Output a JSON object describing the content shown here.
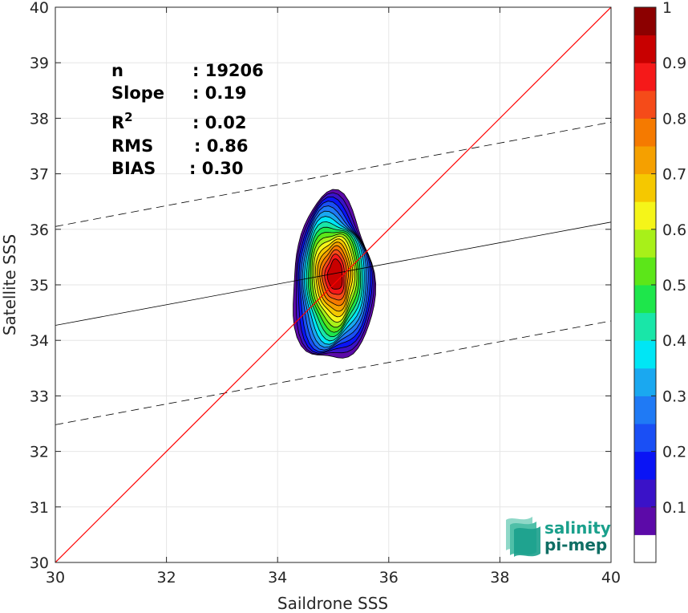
{
  "chart_data": {
    "type": "heatmap",
    "xlabel": "Saildrone SSS",
    "ylabel": "Satellite SSS",
    "xlim": [
      30,
      40
    ],
    "ylim": [
      30,
      40
    ],
    "x_ticks": [
      "30",
      "32",
      "34",
      "36",
      "38",
      "40"
    ],
    "y_ticks": [
      "30",
      "31",
      "32",
      "33",
      "34",
      "35",
      "36",
      "37",
      "38",
      "39",
      "40"
    ],
    "grid": true,
    "stats": [
      {
        "label": "n",
        "value": ": 19206"
      },
      {
        "label": "Slope",
        "value": ": 0.19"
      },
      {
        "label": "R",
        "sup": "2",
        "value": ": 0.02"
      },
      {
        "label": "RMS",
        "value": ": 0.86"
      },
      {
        "label": "BIAS",
        "value": ": 0.30"
      }
    ],
    "identity_line": {
      "x": [
        30,
        40
      ],
      "y": [
        30,
        40
      ],
      "color": "#ff0000"
    },
    "regression_line": {
      "x": [
        30,
        40
      ],
      "y": [
        34.27,
        36.13
      ],
      "color": "#000000"
    },
    "confidence_bounds": [
      {
        "x": [
          30,
          40
        ],
        "y": [
          36.05,
          37.93
        ]
      },
      {
        "x": [
          30,
          40
        ],
        "y": [
          32.48,
          34.35
        ]
      }
    ],
    "density_peak": {
      "x": 35.05,
      "y": 35.2
    },
    "contour_levels": [
      0.05,
      0.1,
      0.15,
      0.2,
      0.25,
      0.3,
      0.35,
      0.4,
      0.45,
      0.5,
      0.55,
      0.6,
      0.65,
      0.7,
      0.75,
      0.8,
      0.85,
      0.9,
      0.95,
      1
    ],
    "colorbar": {
      "range": [
        0,
        1
      ],
      "ticks": [
        "0.1",
        "0.2",
        "0.3",
        "0.4",
        "0.5",
        "0.6",
        "0.7",
        "0.8",
        "0.9",
        "1"
      ],
      "colors": [
        "#ffffff",
        "#5c0aa8",
        "#3a12c8",
        "#0a14f5",
        "#1a4ff5",
        "#1f7af5",
        "#1aa8f0",
        "#00e6f5",
        "#19e6a8",
        "#1ee64b",
        "#5ce619",
        "#a8f019",
        "#f5f519",
        "#f5c800",
        "#f5a000",
        "#f57a00",
        "#f54b19",
        "#f51919",
        "#c80000",
        "#8c0000"
      ]
    }
  },
  "logo": {
    "line1": "salinity",
    "line2": "pi-mep",
    "color": "#1aa08c"
  }
}
